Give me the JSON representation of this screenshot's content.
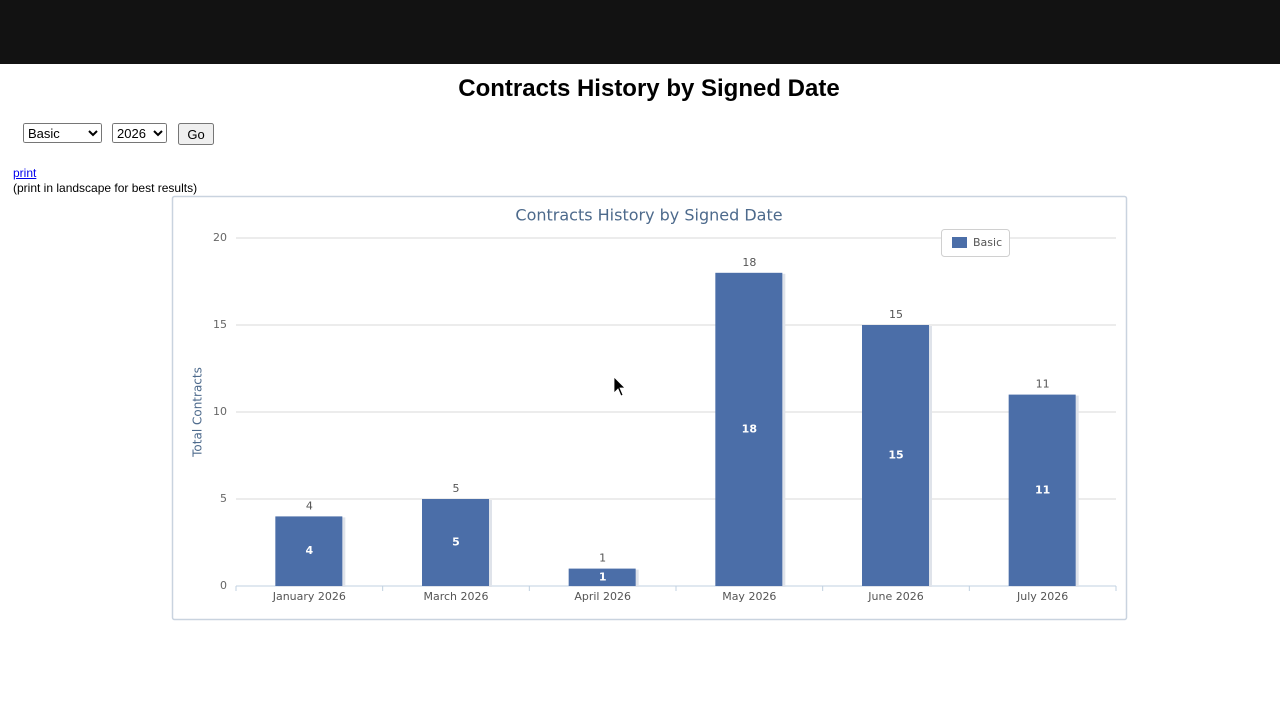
{
  "header": {
    "title": "Contracts History by Signed Date"
  },
  "controls": {
    "type_select": "Basic",
    "year_select": "2026",
    "button": "Go"
  },
  "print": {
    "link": "print",
    "note": "(print in landscape for best results)"
  },
  "chart_data": {
    "type": "bar",
    "title": "Contracts History by Signed Date",
    "y_label": "Total Contracts",
    "categories": [
      "January 2026",
      "March 2026",
      "April 2026",
      "May 2026",
      "June 2026",
      "July 2026"
    ],
    "series": [
      {
        "name": "Basic",
        "color": "#4b6ea8",
        "values": [
          4,
          5,
          1,
          18,
          15,
          11
        ]
      }
    ],
    "ylim": [
      0,
      20
    ],
    "yticks": [
      0,
      5,
      10,
      15,
      20
    ],
    "grid": true,
    "legend": "top-right"
  }
}
